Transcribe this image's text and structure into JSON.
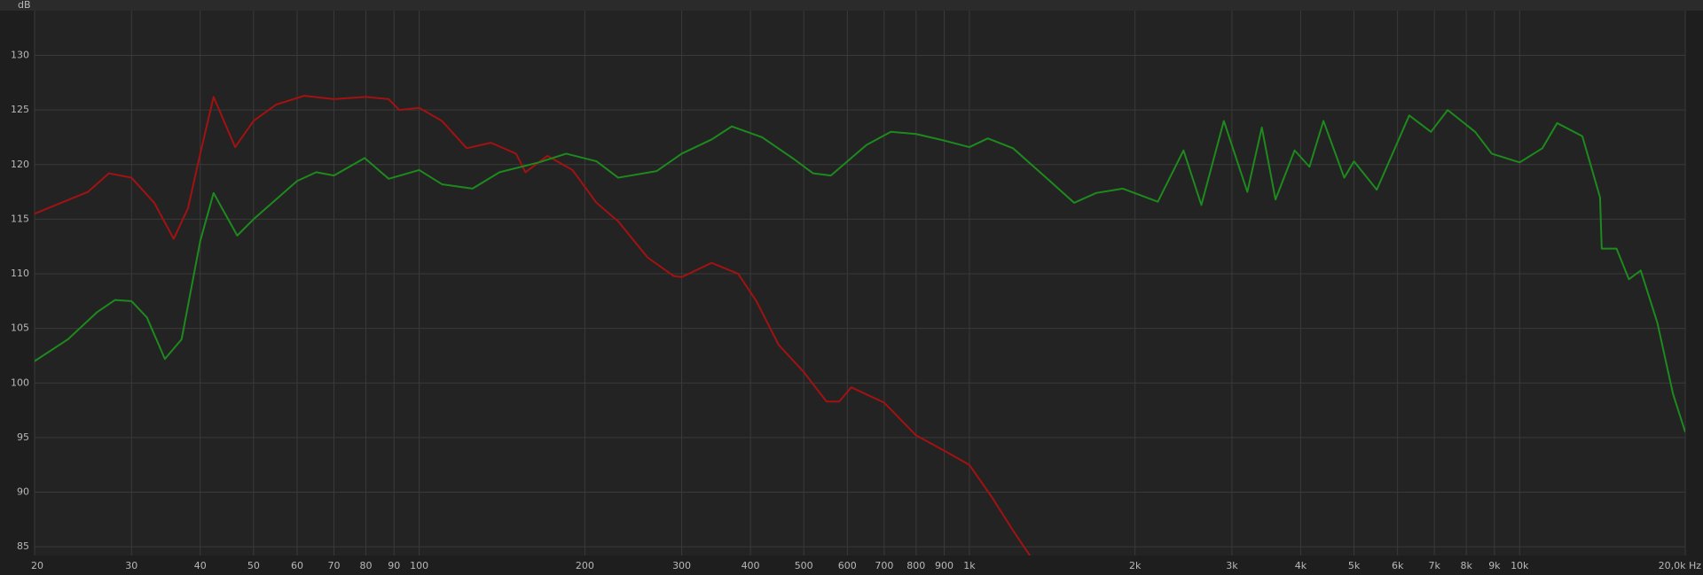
{
  "chart_data": {
    "type": "line",
    "y_unit_label": "dB",
    "log_x": true,
    "grid": true,
    "xlim": [
      20,
      20000
    ],
    "ylim": [
      84.2,
      134.1
    ],
    "xticks": [
      20,
      30,
      40,
      50,
      60,
      70,
      80,
      90,
      100,
      200,
      300,
      400,
      500,
      600,
      700,
      800,
      900,
      {
        "value": 1000,
        "label": "1k"
      },
      {
        "value": 2000,
        "label": "2k"
      },
      {
        "value": 3000,
        "label": "3k"
      },
      {
        "value": 4000,
        "label": "4k"
      },
      {
        "value": 5000,
        "label": "5k"
      },
      {
        "value": 6000,
        "label": "6k"
      },
      {
        "value": 7000,
        "label": "7k"
      },
      {
        "value": 8000,
        "label": "8k"
      },
      {
        "value": 9000,
        "label": "9k"
      },
      {
        "value": 10000,
        "label": "10k"
      },
      {
        "value": 20000,
        "label": "20,0k Hz"
      }
    ],
    "yticks": [
      85,
      90,
      95,
      100,
      105,
      110,
      115,
      120,
      125,
      130
    ],
    "series": [
      {
        "color": "#a31212",
        "x": [
          20,
          25,
          27.3,
          30,
          33,
          35.8,
          38,
          40,
          42.3,
          46.3,
          50,
          55,
          61.8,
          70,
          80,
          88,
          92,
          100,
          110,
          122,
          135,
          150,
          156,
          171,
          190,
          210,
          230,
          260,
          290,
          300,
          340,
          380,
          410,
          450,
          500,
          550,
          580,
          610,
          700,
          800,
          900,
          1000,
          1100,
          1200,
          1300
        ],
        "values": [
          115.5,
          117.5,
          119.2,
          118.8,
          116.5,
          113.2,
          116,
          121,
          126.2,
          121.6,
          124,
          125.5,
          126.3,
          126,
          126.2,
          126,
          125,
          125.2,
          124,
          121.5,
          122,
          121,
          119.3,
          120.8,
          119.5,
          116.5,
          114.8,
          111.5,
          109.8,
          109.7,
          111,
          110,
          107.5,
          103.5,
          101,
          98.3,
          98.3,
          99.6,
          98.2,
          95.2,
          93.8,
          92.5,
          89.5,
          86.5,
          83.9
        ]
      },
      {
        "color": "#1d8a1d",
        "x": [
          20,
          23,
          26,
          28,
          30,
          32,
          34.5,
          37,
          40,
          42.3,
          46.7,
          50,
          60,
          65,
          70,
          79.6,
          88,
          100,
          110,
          125,
          140,
          165,
          185,
          210,
          230,
          270,
          300,
          340,
          370,
          420,
          480,
          520,
          560,
          650,
          720,
          800,
          900,
          1000,
          1080,
          1200,
          1400,
          1550,
          1700,
          1900,
          2200,
          2450,
          2640,
          2900,
          3200,
          3400,
          3600,
          3900,
          4150,
          4400,
          4800,
          5000,
          5500,
          6300,
          6900,
          7400,
          8300,
          8900,
          10000,
          11000,
          11700,
          13000,
          14000,
          14100,
          15000,
          15800,
          16600,
          17800,
          19000,
          20000
        ],
        "values": [
          102,
          104,
          106.5,
          107.6,
          107.5,
          106,
          102.2,
          104,
          113,
          117.4,
          113.5,
          115,
          118.5,
          119.3,
          119,
          120.6,
          118.7,
          119.5,
          118.2,
          117.8,
          119.3,
          120.2,
          121,
          120.3,
          118.8,
          119.4,
          121,
          122.3,
          123.5,
          122.5,
          120.5,
          119.2,
          119,
          121.8,
          123,
          122.8,
          122.2,
          121.6,
          122.4,
          121.5,
          118.5,
          116.5,
          117.4,
          117.8,
          116.6,
          121.3,
          116.3,
          124,
          117.5,
          123.4,
          116.8,
          121.3,
          119.8,
          124,
          118.8,
          120.3,
          117.7,
          124.5,
          123,
          125,
          123,
          121,
          120.2,
          121.5,
          123.8,
          122.6,
          117,
          112.3,
          112.3,
          109.5,
          110.3,
          105.5,
          99,
          95.5
        ]
      }
    ]
  }
}
